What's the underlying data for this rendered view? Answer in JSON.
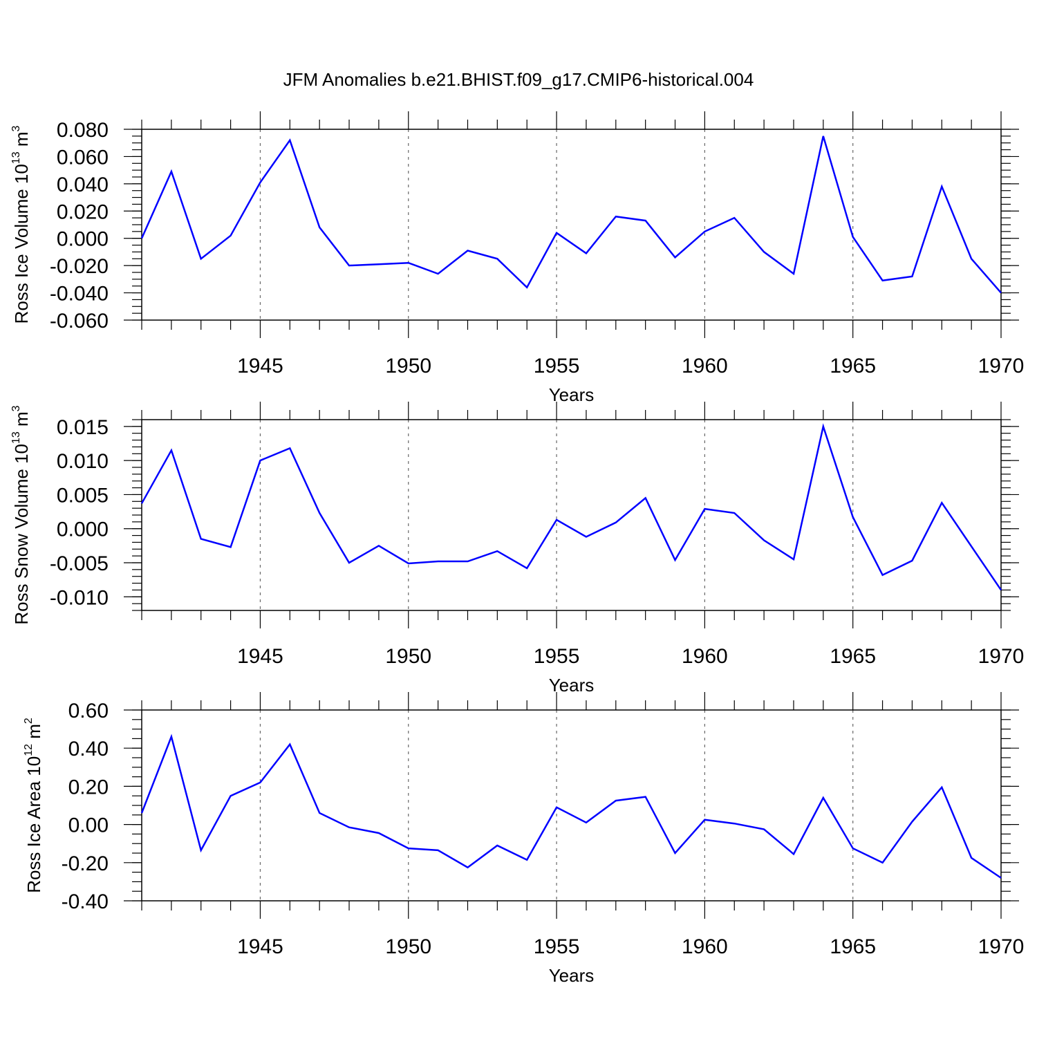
{
  "title": "JFM Anomalies b.e21.BHIST.f09_g17.CMIP6-historical.004",
  "chart_data": [
    {
      "type": "line",
      "ylabel_main": "Ross Ice Volume 10",
      "ylabel_exp": "13",
      "ylabel_unit": " m",
      "ylabel_unit_exp": "3",
      "xlabel": "Years",
      "xlim": [
        1941,
        1970
      ],
      "ylim": [
        -0.06,
        0.08
      ],
      "yticks": [
        0.08,
        0.06,
        0.04,
        0.02,
        0.0,
        -0.02,
        -0.04,
        -0.06
      ],
      "ytick_labels": [
        "0.080",
        "0.060",
        "0.040",
        "0.020",
        "0.000",
        "-0.020",
        "-0.040",
        "-0.060"
      ],
      "yminor": 0.005,
      "xticks": [
        1945,
        1950,
        1955,
        1960,
        1965,
        1970
      ],
      "xtick_labels": [
        "1945",
        "1950",
        "1955",
        "1960",
        "1965",
        "1970"
      ],
      "x": [
        1941,
        1942,
        1943,
        1944,
        1945,
        1946,
        1947,
        1948,
        1949,
        1950,
        1951,
        1952,
        1953,
        1954,
        1955,
        1956,
        1957,
        1958,
        1959,
        1960,
        1961,
        1962,
        1963,
        1964,
        1965,
        1966,
        1967,
        1968,
        1969,
        1970
      ],
      "values": [
        0.0,
        0.049,
        -0.015,
        0.002,
        0.041,
        0.072,
        0.008,
        -0.02,
        -0.019,
        -0.018,
        -0.026,
        -0.009,
        -0.015,
        -0.036,
        0.004,
        -0.011,
        0.016,
        0.013,
        -0.014,
        0.005,
        0.015,
        -0.01,
        -0.026,
        0.075,
        0.001,
        -0.031,
        -0.028,
        0.038,
        -0.015,
        -0.04
      ],
      "color": "#0000ff",
      "grid": "dashed vertical at major x ticks"
    },
    {
      "type": "line",
      "ylabel_main": "Ross Snow Volume 10",
      "ylabel_exp": "13",
      "ylabel_unit": " m",
      "ylabel_unit_exp": "3",
      "xlabel": "Years",
      "xlim": [
        1941,
        1970
      ],
      "ylim": [
        -0.012,
        0.016
      ],
      "yticks": [
        0.015,
        0.01,
        0.005,
        0.0,
        -0.005,
        -0.01
      ],
      "ytick_labels": [
        "0.015",
        "0.010",
        "0.005",
        "0.000",
        "-0.005",
        "-0.010"
      ],
      "yminor": 0.001,
      "xticks": [
        1945,
        1950,
        1955,
        1960,
        1965,
        1970
      ],
      "xtick_labels": [
        "1945",
        "1950",
        "1955",
        "1960",
        "1965",
        "1970"
      ],
      "x": [
        1941,
        1942,
        1943,
        1944,
        1945,
        1946,
        1947,
        1948,
        1949,
        1950,
        1951,
        1952,
        1953,
        1954,
        1955,
        1956,
        1957,
        1958,
        1959,
        1960,
        1961,
        1962,
        1963,
        1964,
        1965,
        1966,
        1967,
        1968,
        1969,
        1970
      ],
      "values": [
        0.0037,
        0.0115,
        -0.0015,
        -0.0027,
        0.01,
        0.0118,
        0.0023,
        -0.005,
        -0.0025,
        -0.0051,
        -0.0048,
        -0.0048,
        -0.0033,
        -0.0058,
        0.0013,
        -0.0012,
        0.0009,
        0.0045,
        -0.0046,
        0.0029,
        0.0023,
        -0.0017,
        -0.0045,
        0.015,
        0.0017,
        -0.0068,
        -0.0047,
        0.0038,
        -0.0026,
        -0.009
      ],
      "color": "#0000ff",
      "grid": "dashed vertical at major x ticks"
    },
    {
      "type": "line",
      "ylabel_main": "Ross Ice Area 10",
      "ylabel_exp": "12",
      "ylabel_unit": " m",
      "ylabel_unit_exp": "2",
      "xlabel": "Years",
      "xlim": [
        1941,
        1970
      ],
      "ylim": [
        -0.4,
        0.6
      ],
      "yticks": [
        0.6,
        0.4,
        0.2,
        0.0,
        -0.2,
        -0.4
      ],
      "ytick_labels": [
        "0.60",
        "0.40",
        "0.20",
        "0.00",
        "-0.20",
        "-0.40"
      ],
      "yminor": 0.05,
      "xticks": [
        1945,
        1950,
        1955,
        1960,
        1965,
        1970
      ],
      "xtick_labels": [
        "1945",
        "1950",
        "1955",
        "1960",
        "1965",
        "1970"
      ],
      "x": [
        1941,
        1942,
        1943,
        1944,
        1945,
        1946,
        1947,
        1948,
        1949,
        1950,
        1951,
        1952,
        1953,
        1954,
        1955,
        1956,
        1957,
        1958,
        1959,
        1960,
        1961,
        1962,
        1963,
        1964,
        1965,
        1966,
        1967,
        1968,
        1969,
        1970
      ],
      "values": [
        0.06,
        0.46,
        -0.135,
        0.15,
        0.22,
        0.42,
        0.06,
        -0.015,
        -0.045,
        -0.125,
        -0.135,
        -0.225,
        -0.11,
        -0.185,
        0.09,
        0.01,
        0.125,
        0.145,
        -0.15,
        0.025,
        0.005,
        -0.025,
        -0.155,
        0.14,
        -0.125,
        -0.2,
        0.015,
        0.195,
        -0.175,
        -0.28
      ],
      "color": "#0000ff",
      "grid": "dashed vertical at major x ticks"
    }
  ]
}
